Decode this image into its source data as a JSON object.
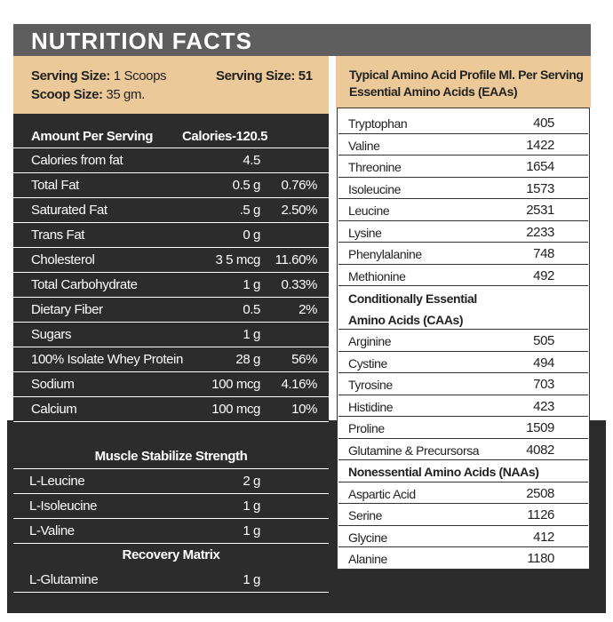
{
  "header": {
    "title": "NUTRITION  FACTS"
  },
  "serving": {
    "serving_size": {
      "label": "Serving Size:",
      "value": "1 Scoops"
    },
    "serving_size_2": {
      "label": "Serving Size:",
      "value": "51"
    },
    "scoop_size": {
      "label": "Scoop Size:",
      "value": "35 gm."
    }
  },
  "nutrition": {
    "header": [
      "Amount Per Serving",
      "Calories-120.5"
    ],
    "rows": [
      [
        "Calories from fat",
        "4.5"
      ],
      [
        "Total Fat",
        "0.5 g",
        "0.76%"
      ],
      [
        "Saturated Fat",
        ".5 g",
        "2.50%"
      ],
      [
        "Trans Fat",
        "0 g"
      ],
      [
        "Cholesterol",
        "3 5 mcg",
        "11.60%"
      ],
      [
        "Total Carbohydrate",
        "1 g",
        "0.33%"
      ],
      [
        "Dietary Fiber",
        "0.5",
        "2%"
      ],
      [
        "Sugars",
        "1 g"
      ],
      [
        "100% Isolate Whey Protein",
        "28 g",
        "56%"
      ],
      [
        "Sodium",
        "100 mcg",
        "4.16%"
      ],
      [
        "Calcium",
        "100 mcg",
        "10%"
      ]
    ]
  },
  "blend": {
    "title": "Muscle Stabilize Strength",
    "rows": [
      [
        "L-Leucine",
        "2 g"
      ],
      [
        "L-Isoleucine",
        "1 g"
      ],
      [
        "L-Valine",
        "1 g"
      ]
    ]
  },
  "recovery": {
    "title": "Recovery Matrix",
    "rows": [
      [
        "L-Glutamine",
        "1 g"
      ]
    ]
  },
  "amino": {
    "title": [
      "Typical Amino Acid Profile Ml. Per Serving",
      "Essential Amino Acids (EAAs)"
    ],
    "essential": [
      [
        "Tryptophan",
        "405"
      ],
      [
        "Valine",
        "1422"
      ],
      [
        "Threonine",
        "1654"
      ],
      [
        "Isoleucine",
        "1573"
      ],
      [
        "Leucine",
        "2531"
      ],
      [
        "Lysine",
        "2233"
      ],
      [
        "Phenylalanine",
        "748"
      ],
      [
        "Methionine",
        "492"
      ]
    ],
    "conditional": {
      "title": [
        "Conditionally Essential",
        "Amino Acids (CAAs)"
      ],
      "rows": [
        [
          "Arginine",
          "505"
        ],
        [
          "Cystine",
          "494"
        ],
        [
          "Tyrosine",
          "703"
        ],
        [
          "Histidine",
          "423"
        ],
        [
          "Proline",
          "1509"
        ],
        [
          "Glutamine & Precursorsa",
          "4082"
        ]
      ]
    },
    "nonessential": {
      "title": "Nonessential Amino Acids (NAAs)",
      "rows": [
        [
          "Aspartic Acid",
          "2508"
        ],
        [
          "Serine",
          "1126"
        ],
        [
          "Glycine",
          "412"
        ],
        [
          "Alanine",
          "1180"
        ]
      ]
    }
  }
}
